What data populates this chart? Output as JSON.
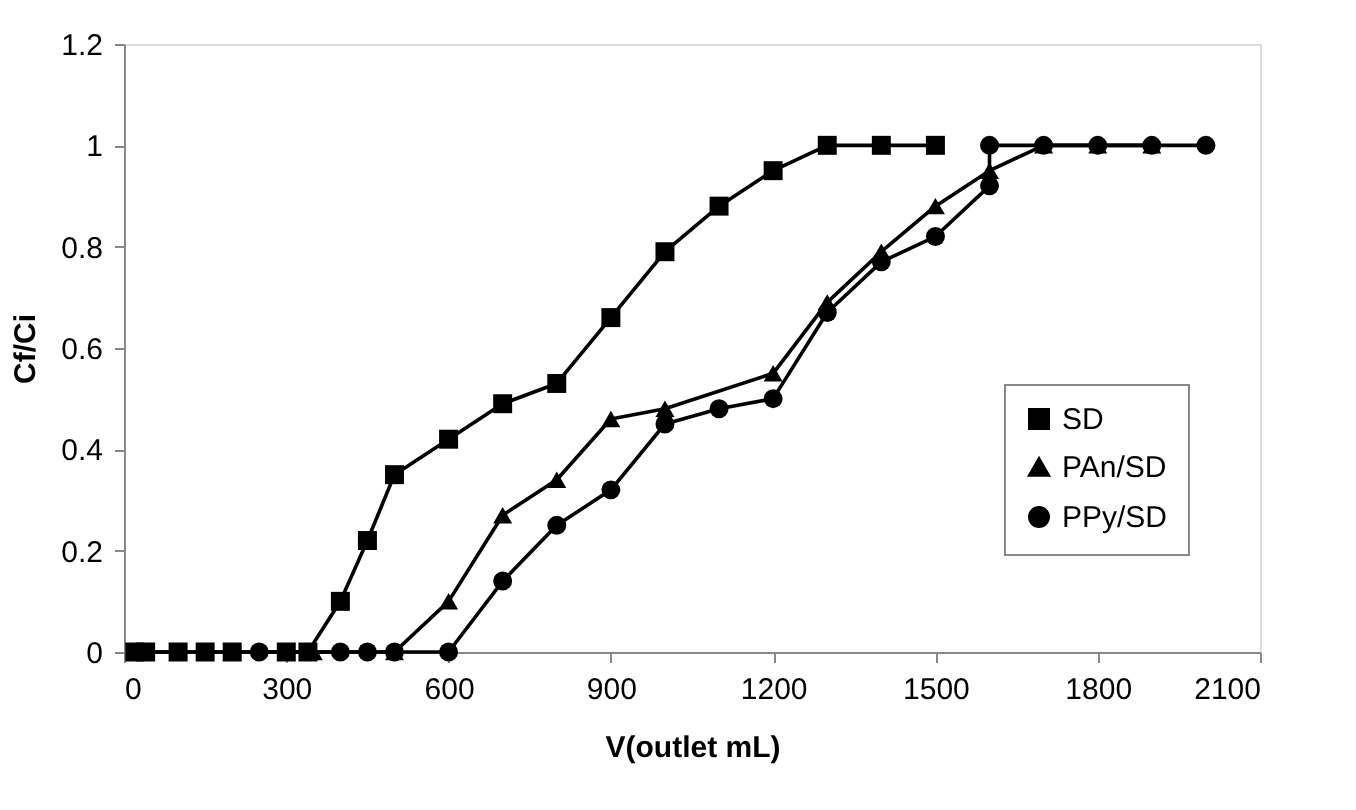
{
  "chart_data": {
    "type": "line",
    "xlabel": "V(outlet mL)",
    "ylabel": "Cf/Ci",
    "xlim": [
      0,
      2100
    ],
    "xticks": [
      0,
      300,
      600,
      900,
      1200,
      1500,
      1800,
      2100
    ],
    "ylim": [
      0,
      1.2
    ],
    "yticks": [
      0,
      0.2,
      0.4,
      0.6,
      0.8,
      1,
      1.2
    ],
    "grid": false,
    "legend": "right",
    "line_style": "solid",
    "series": [
      {
        "name": "SD",
        "color": "#000000",
        "marker": "square",
        "x": [
          20,
          40,
          100,
          150,
          200,
          300,
          340,
          400,
          450,
          500,
          600,
          700,
          800,
          900,
          1000,
          1100,
          1200,
          1300,
          1400,
          1500
        ],
        "values": [
          0,
          0,
          0,
          0,
          0,
          0,
          0,
          0.1,
          0.22,
          0.35,
          0.42,
          0.49,
          0.53,
          0.66,
          0.79,
          0.88,
          0.95,
          1,
          1,
          1
        ]
      },
      {
        "name": "PAn/SD",
        "color": "#000000",
        "marker": "triangle",
        "x": [
          30,
          200,
          350,
          500,
          600,
          700,
          800,
          900,
          1000,
          1200,
          1300,
          1400,
          1500,
          1600,
          1700,
          1800,
          1900
        ],
        "values": [
          0,
          0,
          0,
          0,
          0.1,
          0.27,
          0.34,
          0.46,
          0.48,
          0.55,
          0.69,
          0.79,
          0.88,
          0.95,
          1,
          1,
          1
        ]
      },
      {
        "name": "PPy/SD",
        "color": "#000000",
        "marker": "circle",
        "x": [
          250,
          400,
          450,
          500,
          600,
          700,
          800,
          900,
          1000,
          1100,
          1200,
          1300,
          1400,
          1500,
          1600,
          1600,
          1700,
          1800,
          1900,
          2000
        ],
        "values": [
          0,
          0,
          0,
          0,
          0,
          0.14,
          0.25,
          0.32,
          0.45,
          0.48,
          0.5,
          0.67,
          0.77,
          0.82,
          0.92,
          1,
          1,
          1,
          1,
          1
        ]
      }
    ]
  }
}
